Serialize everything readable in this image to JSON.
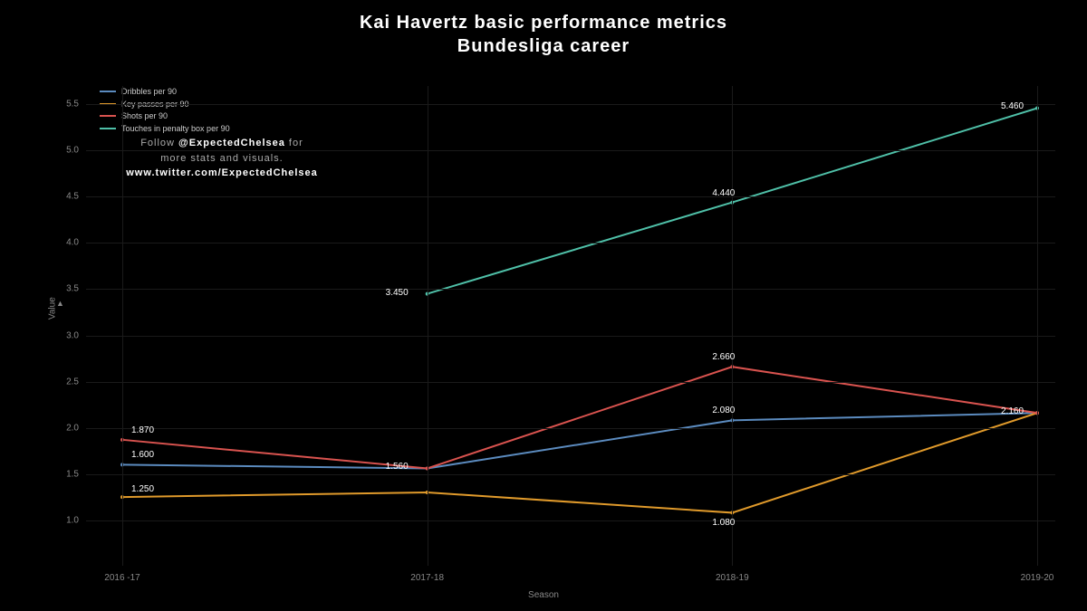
{
  "title_line1": "Kai Havertz basic performance metrics",
  "title_line2": "Bundesliga career",
  "title_fontsize": 20,
  "background_color": "#000000",
  "axis_color": "#888888",
  "grid_color": "#1a1a1a",
  "x": {
    "label": "Season",
    "categories": [
      "2016 -17",
      "2017-18",
      "2018-19",
      "2019-20"
    ]
  },
  "y": {
    "label": "Value",
    "min": 0.8,
    "max": 5.7,
    "ticks": [
      1.0,
      1.5,
      2.0,
      2.5,
      3.0,
      3.5,
      4.0,
      4.5,
      5.0,
      5.5
    ]
  },
  "legend": {
    "items": [
      {
        "label": "Dribbles per 90",
        "color": "#5b8bbf"
      },
      {
        "label": "Key passes per 90",
        "color": "#e09a2b"
      },
      {
        "label": "Shots per 90",
        "color": "#d9534f"
      },
      {
        "label": "Touches in penalty box per 90",
        "color": "#4fc0a8"
      }
    ]
  },
  "credit": {
    "line1_a": "Follow ",
    "line1_b": "@ExpectedChelsea",
    "line1_c": " for",
    "line2": "more stats and visuals.",
    "line3": "www.twitter.com/ExpectedChelsea"
  },
  "series": [
    {
      "name": "dribbles",
      "color": "#5b8bbf",
      "values": [
        1.6,
        1.56,
        2.08,
        2.16
      ],
      "line_width": 2,
      "labels": [
        {
          "i": 0,
          "text": "1.600",
          "dx": 10,
          "dy": -16
        },
        {
          "i": 2,
          "text": "2.080",
          "dx": -22,
          "dy": -16
        }
      ]
    },
    {
      "name": "key_passes",
      "color": "#e09a2b",
      "values": [
        1.25,
        1.3,
        1.08,
        2.16
      ],
      "line_width": 2,
      "labels": [
        {
          "i": 0,
          "text": "1.250",
          "dx": 10,
          "dy": -14
        },
        {
          "i": 2,
          "text": "1.080",
          "dx": -22,
          "dy": 6
        }
      ]
    },
    {
      "name": "shots",
      "color": "#d9534f",
      "values": [
        1.87,
        1.56,
        2.66,
        2.16
      ],
      "line_width": 2,
      "labels": [
        {
          "i": 0,
          "text": "1.870",
          "dx": 10,
          "dy": -16
        },
        {
          "i": 1,
          "text": "1.560",
          "dx": -46,
          "dy": -7
        },
        {
          "i": 2,
          "text": "2.660",
          "dx": -22,
          "dy": -16
        },
        {
          "i": 3,
          "text": "2.160",
          "dx": -40,
          "dy": -7
        }
      ]
    },
    {
      "name": "touches_box",
      "color": "#4fc0a8",
      "values": [
        null,
        3.45,
        4.44,
        5.46
      ],
      "line_width": 2,
      "labels": [
        {
          "i": 1,
          "text": "3.450",
          "dx": -46,
          "dy": -7
        },
        {
          "i": 2,
          "text": "4.440",
          "dx": -22,
          "dy": -16
        },
        {
          "i": 3,
          "text": "5.460",
          "dx": -40,
          "dy": -7
        }
      ]
    }
  ]
}
